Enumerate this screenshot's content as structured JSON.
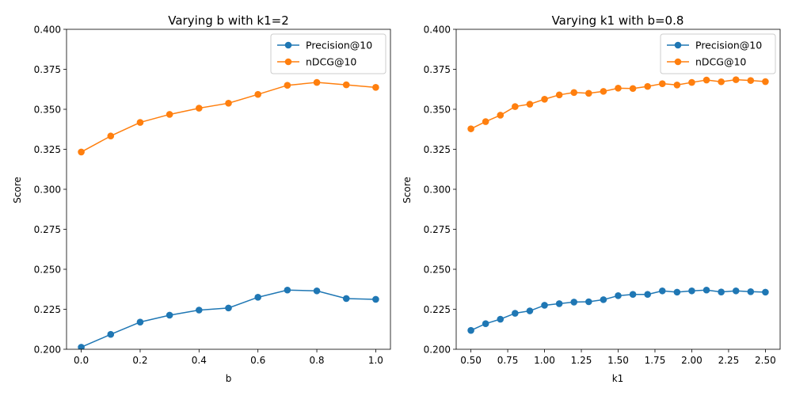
{
  "colors": {
    "precision": "#1f77b4",
    "ndcg": "#ff7f0e"
  },
  "chart_data": [
    {
      "type": "line",
      "title": "Varying b with k1=2",
      "xlabel": "b",
      "ylabel": "Score",
      "xlim": [
        -0.05,
        1.05
      ],
      "ylim": [
        0.2,
        0.4
      ],
      "xticks": [
        0.0,
        0.2,
        0.4,
        0.6,
        0.8,
        1.0
      ],
      "xtick_labels": [
        "0.0",
        "0.2",
        "0.4",
        "0.6",
        "0.8",
        "1.0"
      ],
      "yticks": [
        0.2,
        0.225,
        0.25,
        0.275,
        0.3,
        0.325,
        0.35,
        0.375,
        0.4
      ],
      "ytick_labels": [
        "0.200",
        "0.225",
        "0.250",
        "0.275",
        "0.300",
        "0.325",
        "0.350",
        "0.375",
        "0.400"
      ],
      "legend": "top-right",
      "grid": false,
      "x": [
        0.0,
        0.1,
        0.2,
        0.3,
        0.4,
        0.5,
        0.6,
        0.7,
        0.8,
        0.9,
        1.0
      ],
      "series": [
        {
          "name": "Precision@10",
          "color_key": "precision",
          "values": [
            0.2013,
            0.2093,
            0.217,
            0.2213,
            0.2245,
            0.2258,
            0.2325,
            0.237,
            0.2365,
            0.2317,
            0.2312
          ]
        },
        {
          "name": "nDCG@10",
          "color_key": "ndcg",
          "values": [
            0.3233,
            0.3333,
            0.3418,
            0.3468,
            0.3507,
            0.3538,
            0.3593,
            0.365,
            0.3668,
            0.3653,
            0.3637
          ]
        }
      ]
    },
    {
      "type": "line",
      "title": "Varying k1 with b=0.8",
      "xlabel": "k1",
      "ylabel": "Score",
      "xlim": [
        0.4,
        2.6
      ],
      "ylim": [
        0.2,
        0.4
      ],
      "xticks": [
        0.5,
        0.75,
        1.0,
        1.25,
        1.5,
        1.75,
        2.0,
        2.25,
        2.5
      ],
      "xtick_labels": [
        "0.50",
        "0.75",
        "1.00",
        "1.25",
        "1.50",
        "1.75",
        "2.00",
        "2.25",
        "2.50"
      ],
      "yticks": [
        0.2,
        0.225,
        0.25,
        0.275,
        0.3,
        0.325,
        0.35,
        0.375,
        0.4
      ],
      "ytick_labels": [
        "0.200",
        "0.225",
        "0.250",
        "0.275",
        "0.300",
        "0.325",
        "0.350",
        "0.375",
        "0.400"
      ],
      "legend": "top-right",
      "grid": false,
      "x": [
        0.5,
        0.6,
        0.7,
        0.8,
        0.9,
        1.0,
        1.1,
        1.2,
        1.3,
        1.4,
        1.5,
        1.6,
        1.7,
        1.8,
        1.9,
        2.0,
        2.1,
        2.2,
        2.3,
        2.4,
        2.5
      ],
      "series": [
        {
          "name": "Precision@10",
          "color_key": "precision",
          "values": [
            0.2118,
            0.216,
            0.2188,
            0.2225,
            0.224,
            0.2275,
            0.2285,
            0.2295,
            0.2297,
            0.231,
            0.2335,
            0.2343,
            0.2343,
            0.2365,
            0.2357,
            0.2365,
            0.237,
            0.2358,
            0.2365,
            0.236,
            0.2357
          ]
        },
        {
          "name": "nDCG@10",
          "color_key": "ndcg",
          "values": [
            0.3378,
            0.3423,
            0.3463,
            0.3517,
            0.3532,
            0.3563,
            0.359,
            0.3605,
            0.36,
            0.3612,
            0.3632,
            0.363,
            0.3643,
            0.366,
            0.3652,
            0.3668,
            0.3683,
            0.3672,
            0.3685,
            0.368,
            0.3673
          ]
        }
      ]
    }
  ]
}
